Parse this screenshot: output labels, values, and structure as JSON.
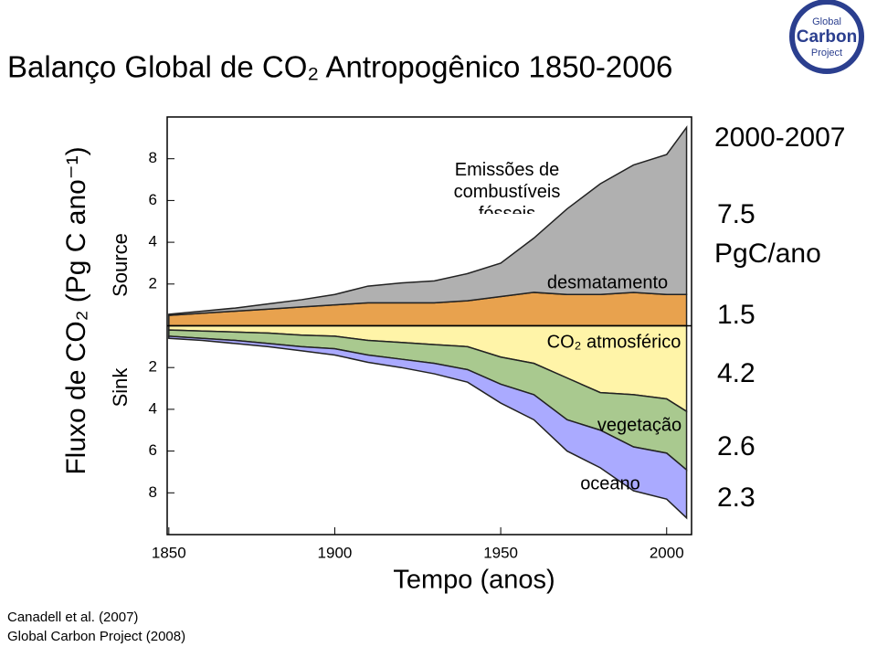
{
  "chart_data": {
    "type": "stacked-area",
    "title": "Balanço Global de CO₂ Antropogênico 1850-2006",
    "ylabel": "Fluxo de CO₂ (Pg C ano⁻¹)",
    "xlabel": "Tempo (anos)",
    "source_label": "Source",
    "sink_label": "Sink",
    "x": [
      1850,
      1860,
      1870,
      1880,
      1890,
      1900,
      1910,
      1920,
      1930,
      1940,
      1950,
      1960,
      1970,
      1980,
      1990,
      2000,
      2006
    ],
    "series": [
      {
        "name": "desmatamento",
        "color": "#e8a24e",
        "values": [
          0.5,
          0.6,
          0.7,
          0.8,
          0.9,
          1.0,
          1.1,
          1.1,
          1.1,
          1.2,
          1.4,
          1.6,
          1.5,
          1.5,
          1.6,
          1.5,
          1.5
        ]
      },
      {
        "name": "Emissões de combustíveis fósseis",
        "color": "#b0b0b0",
        "values": [
          0.05,
          0.1,
          0.15,
          0.25,
          0.35,
          0.5,
          0.8,
          0.95,
          1.05,
          1.3,
          1.6,
          2.6,
          4.1,
          5.3,
          6.1,
          6.7,
          8.0
        ]
      },
      {
        "name": "CO₂ atmosférico",
        "color": "#fff4a8",
        "values": [
          -0.2,
          -0.25,
          -0.3,
          -0.35,
          -0.45,
          -0.5,
          -0.7,
          -0.8,
          -0.9,
          -1.0,
          -1.5,
          -1.8,
          -2.5,
          -3.2,
          -3.3,
          -3.5,
          -4.1
        ]
      },
      {
        "name": "vegetação",
        "color": "#a9c98f",
        "values": [
          -0.3,
          -0.35,
          -0.4,
          -0.5,
          -0.55,
          -0.6,
          -0.7,
          -0.8,
          -0.9,
          -1.1,
          -1.3,
          -1.5,
          -2.0,
          -1.8,
          -2.5,
          -2.6,
          -2.8
        ]
      },
      {
        "name": "oceano",
        "color": "#aaaaff",
        "values": [
          -0.1,
          -0.1,
          -0.15,
          -0.15,
          -0.2,
          -0.3,
          -0.35,
          -0.4,
          -0.5,
          -0.6,
          -0.9,
          -1.2,
          -1.5,
          -1.8,
          -2.1,
          -2.2,
          -2.3
        ]
      }
    ],
    "xlim": [
      1849.5,
      2007.5
    ],
    "xticks": [
      1850,
      1900,
      1950,
      2000
    ],
    "ylim": [
      -10,
      10
    ],
    "yticks": [
      {
        "value": -8,
        "label": "8"
      },
      {
        "value": -6,
        "label": "6"
      },
      {
        "value": -4,
        "label": "4"
      },
      {
        "value": -2,
        "label": "2"
      },
      2,
      4,
      6,
      8
    ],
    "period": "2000-2007",
    "period_unit": "PgC/ano",
    "period_values": [
      7.5,
      1.5,
      4.2,
      2.6,
      2.3
    ],
    "credits": [
      "Canadell et al. (2007)",
      "Global Carbon Project (2008)"
    ],
    "logo": [
      "Global",
      "Carbon",
      "Project"
    ]
  }
}
